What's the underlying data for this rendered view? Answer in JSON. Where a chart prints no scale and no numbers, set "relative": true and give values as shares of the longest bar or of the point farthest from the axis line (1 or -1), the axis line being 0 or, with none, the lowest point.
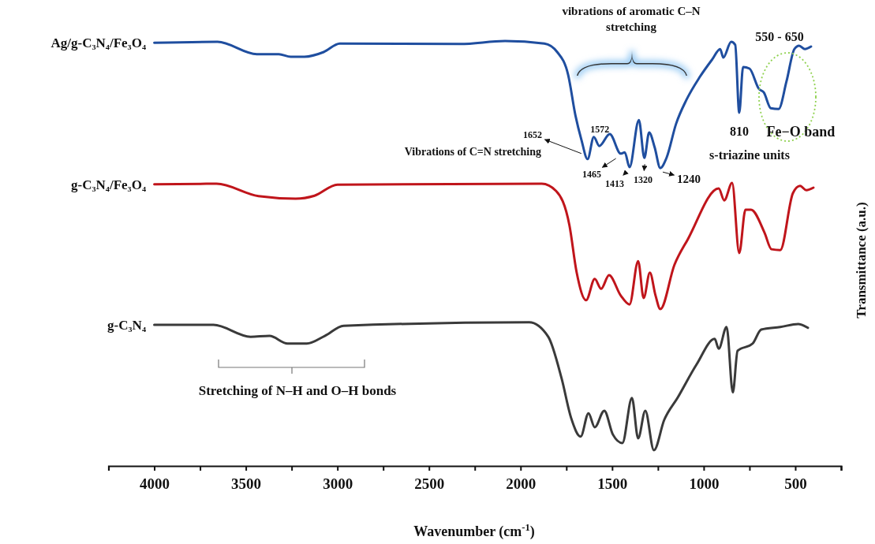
{
  "chart_data": {
    "type": "line",
    "relative": true,
    "xlabel": "Wavenumber (cm$^{-1}$)",
    "ylabel": "Transmittance (a.u.)",
    "xlim": [
      4250,
      250
    ],
    "xticks": [
      {
        "value": 4250,
        "label": null
      },
      4000,
      {
        "value": 3750,
        "label": null
      },
      3500,
      {
        "value": 3250,
        "label": null
      },
      3000,
      {
        "value": 2750,
        "label": null
      },
      2500,
      {
        "value": 2250,
        "label": null
      },
      2000,
      {
        "value": 1750,
        "label": null
      },
      1500,
      {
        "value": 1250,
        "label": null
      },
      1000,
      {
        "value": 750,
        "label": null
      },
      500,
      {
        "value": 250,
        "label": null
      }
    ],
    "series": [
      {
        "name": "Ag/g-C₃N₄/Fe₃O₄",
        "color": "#1f4e9f",
        "x": [
          4000,
          3655,
          3440,
          3320,
          3255,
          3180,
          3075,
          2987,
          2330,
          2085,
          1870,
          1800,
          1740,
          1700,
          1668,
          1634,
          1600,
          1570,
          1513,
          1453,
          1431,
          1405,
          1354,
          1324,
          1298,
          1268,
          1237,
          1203,
          1151,
          1095,
          1022,
          953,
          910,
          893,
          850,
          828,
          806,
          785,
          750,
          698,
          672,
          634,
          591,
          548,
          505,
          479,
          448,
          414
        ],
        "values": [
          0.996,
          0.998,
          0.969,
          0.969,
          0.963,
          0.963,
          0.974,
          0.994,
          0.993,
          1.0,
          0.994,
          0.974,
          0.92,
          0.824,
          0.768,
          0.722,
          0.774,
          0.753,
          0.781,
          0.735,
          0.738,
          0.703,
          0.814,
          0.725,
          0.785,
          0.75,
          0.701,
          0.725,
          0.805,
          0.861,
          0.915,
          0.957,
          0.981,
          0.961,
          0.998,
          0.991,
          0.831,
          0.939,
          0.935,
          0.887,
          0.879,
          0.842,
          0.84,
          0.905,
          0.981,
          0.989,
          0.981,
          0.987
        ]
      },
      {
        "name": "g-C₃N₄/Fe₃O₄",
        "color": "#c0151b",
        "x": [
          4000,
          3660,
          3431,
          3228,
          3125,
          3000,
          1884,
          1806,
          1733,
          1694,
          1642,
          1595,
          1560,
          1517,
          1453,
          1405,
          1358,
          1328,
          1294,
          1263,
          1237,
          1160,
          1086,
          918,
          888,
          845,
          806,
          772,
          742,
          668,
          630,
          582,
          513,
          474,
          440,
          401
        ],
        "values": [
          0.663,
          0.664,
          0.635,
          0.629,
          0.636,
          0.662,
          0.664,
          0.647,
          0.566,
          0.456,
          0.39,
          0.44,
          0.417,
          0.449,
          0.401,
          0.38,
          0.482,
          0.395,
          0.455,
          0.401,
          0.369,
          0.473,
          0.534,
          0.653,
          0.625,
          0.666,
          0.501,
          0.603,
          0.603,
          0.549,
          0.51,
          0.508,
          0.642,
          0.659,
          0.649,
          0.655
        ]
      },
      {
        "name": "g-C₃N₄",
        "color": "#3a3a3a",
        "x": [
          4000,
          3677,
          3474,
          3371,
          3272,
          3168,
          3069,
          2966,
          1953,
          1849,
          1776,
          1724,
          1672,
          1629,
          1595,
          1543,
          1496,
          1444,
          1392,
          1358,
          1319,
          1272,
          1216,
          1142,
          1039,
          940,
          918,
          875,
          841,
          815,
          733,
          686,
          582,
          483,
          431
        ],
        "values": [
          0.332,
          0.332,
          0.304,
          0.306,
          0.288,
          0.288,
          0.306,
          0.33,
          0.338,
          0.304,
          0.206,
          0.113,
          0.069,
          0.124,
          0.091,
          0.13,
          0.074,
          0.054,
          0.16,
          0.065,
          0.13,
          0.037,
          0.108,
          0.161,
          0.239,
          0.299,
          0.276,
          0.327,
          0.173,
          0.271,
          0.288,
          0.321,
          0.327,
          0.334,
          0.325
        ]
      }
    ],
    "annotations": [
      "vibrations of aromatic C–N stretching",
      "Vibrations of C=N stretching",
      {
        "text": "1652",
        "x": 1652,
        "y": 0.74
      },
      {
        "text": "1572",
        "x": 1572,
        "y": 0.753
      },
      {
        "text": "1465",
        "x": 1465,
        "y": 0.735
      },
      {
        "text": "1413",
        "x": 1413,
        "y": 0.703
      },
      {
        "text": "1320",
        "x": 1320,
        "y": 0.725
      },
      {
        "text": "1240",
        "x": 1240,
        "y": 0.701
      },
      {
        "text": "810",
        "x": 810,
        "y": 0.831
      },
      "550 - 650",
      "Fe−O band",
      "s-triazine units",
      "Stretching of N–H and O–H bonds"
    ]
  }
}
